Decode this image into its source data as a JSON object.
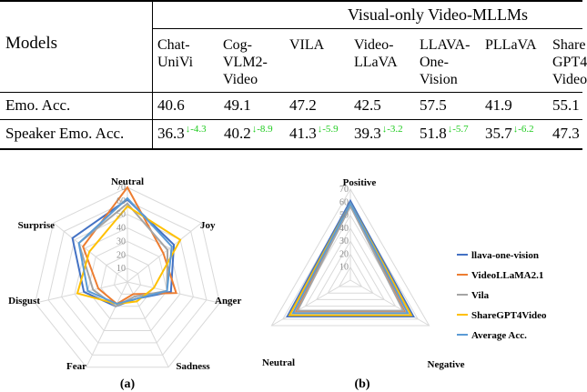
{
  "table": {
    "group_header": "Visual-only Video-MLLMs",
    "models_header": "Models",
    "columns": [
      "Chat-\nUniVi",
      "Cog-\nVLM2-\nVideo",
      "VILA",
      "Video-\nLLaVA",
      "LLAVA-\nOne-\nVision",
      "PLLaVA",
      "Share\nGPT4\nVideo"
    ],
    "rows": [
      {
        "label": "Emo. Acc.",
        "cells": [
          {
            "v": "40.6",
            "d": ""
          },
          {
            "v": "49.1",
            "d": ""
          },
          {
            "v": "47.2",
            "d": ""
          },
          {
            "v": "42.5",
            "d": ""
          },
          {
            "v": "57.5",
            "d": ""
          },
          {
            "v": "41.9",
            "d": ""
          },
          {
            "v": "55.1",
            "d": ""
          }
        ]
      },
      {
        "label": "Speaker Emo. Acc.",
        "cells": [
          {
            "v": "36.3",
            "d": "↓-4.3"
          },
          {
            "v": "40.2",
            "d": "↓-8.9"
          },
          {
            "v": "41.3",
            "d": "↓-5.9"
          },
          {
            "v": "39.3",
            "d": "↓-3.2"
          },
          {
            "v": "51.8",
            "d": "↓-5.7"
          },
          {
            "v": "35.7",
            "d": "↓-6.2"
          },
          {
            "v": "47.3",
            "d": ""
          }
        ]
      }
    ]
  },
  "captions": {
    "a": "(a)",
    "b": "(b)"
  },
  "chart_data": [
    {
      "type": "radar",
      "axes": [
        "Neutral",
        "Joy",
        "Anger",
        "Sadness",
        "Fear",
        "Disgust",
        "Surprise"
      ],
      "rlim": [
        0,
        70
      ],
      "ticks": [
        "10",
        "20",
        "30",
        "40",
        "50",
        "60",
        "70"
      ],
      "series": [
        {
          "color": "#4472c4",
          "values": [
            61,
            44,
            33,
            14,
            20,
            33,
            52
          ]
        },
        {
          "color": "#ed7d31",
          "values": [
            70,
            34,
            37,
            10,
            18,
            22,
            42
          ]
        },
        {
          "color": "#a5a5a5",
          "values": [
            58,
            38,
            30,
            12,
            20,
            26,
            46
          ]
        },
        {
          "color": "#ffc000",
          "values": [
            56,
            50,
            20,
            16,
            18,
            38,
            36
          ]
        },
        {
          "color": "#5b9bd5",
          "values": [
            62,
            42,
            30,
            14,
            18,
            30,
            46
          ]
        }
      ]
    },
    {
      "type": "radar",
      "axes": [
        "Positive",
        "Negative",
        "Neutral"
      ],
      "rlim": [
        0,
        70
      ],
      "ticks": [
        "10",
        "20",
        "30",
        "40",
        "50",
        "60",
        "70"
      ],
      "series": [
        {
          "name": "llava-one-vision",
          "color": "#4472c4",
          "values": [
            61,
            56,
            56
          ]
        },
        {
          "name": "VideoLLaMA2.1",
          "color": "#ed7d31",
          "values": [
            58,
            48,
            48
          ]
        },
        {
          "name": "Vila",
          "color": "#a5a5a5",
          "values": [
            57,
            47,
            47
          ]
        },
        {
          "name": "ShareGPT4Video",
          "color": "#ffc000",
          "values": [
            59,
            54,
            54
          ]
        },
        {
          "name": "Average Acc.",
          "color": "#5b9bd5",
          "values": [
            59,
            51,
            51
          ]
        }
      ]
    }
  ]
}
